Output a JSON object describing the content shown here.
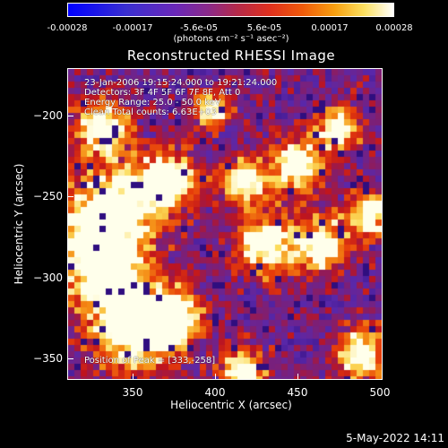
{
  "colorbar": {
    "ticks": [
      "-0.00028",
      "-0.00017",
      "-5.6e-05",
      "5.6e-05",
      "0.00017",
      "0.00028"
    ],
    "unit": "(photons cm⁻² s⁻¹ asec⁻²)"
  },
  "title": "Reconstructed RHESSI Image",
  "info": {
    "line1": "23-Jan-2006 19:15:24.000 to 19:21:24.000",
    "line2": "Detectors: 3F 4F 5F 6F 7F 8F, Att 0",
    "line3": "Energy Range: 25.0 - 50.0 keV",
    "line4": "Clean    Total counts: 6.63E+03",
    "peak": "Position of Peak = [333,-258]"
  },
  "chart_data": {
    "type": "heatmap",
    "title": "Reconstructed RHESSI Image",
    "xlabel": "Heliocentric X (arcsec)",
    "ylabel": "Heliocentric Y (arcsec)",
    "xlim": [
      310,
      500
    ],
    "ylim": [
      -365,
      -180
    ],
    "x_ticks": [
      "350",
      "400",
      "450",
      "500"
    ],
    "y_ticks": [
      "-200",
      "-250",
      "-300",
      "-350"
    ],
    "colorbar_range": [
      -0.00028,
      0.00028
    ],
    "peak_position": [
      333,
      -258
    ]
  },
  "axes": {
    "xlabel": "Heliocentric X (arcsec)",
    "ylabel": "Heliocentric Y (arcsec)",
    "x_ticks": [
      "350",
      "400",
      "450",
      "500"
    ],
    "y_ticks": [
      "−200",
      "−250",
      "−300",
      "−350"
    ]
  },
  "timestamp": "5-May-2022 14:11"
}
